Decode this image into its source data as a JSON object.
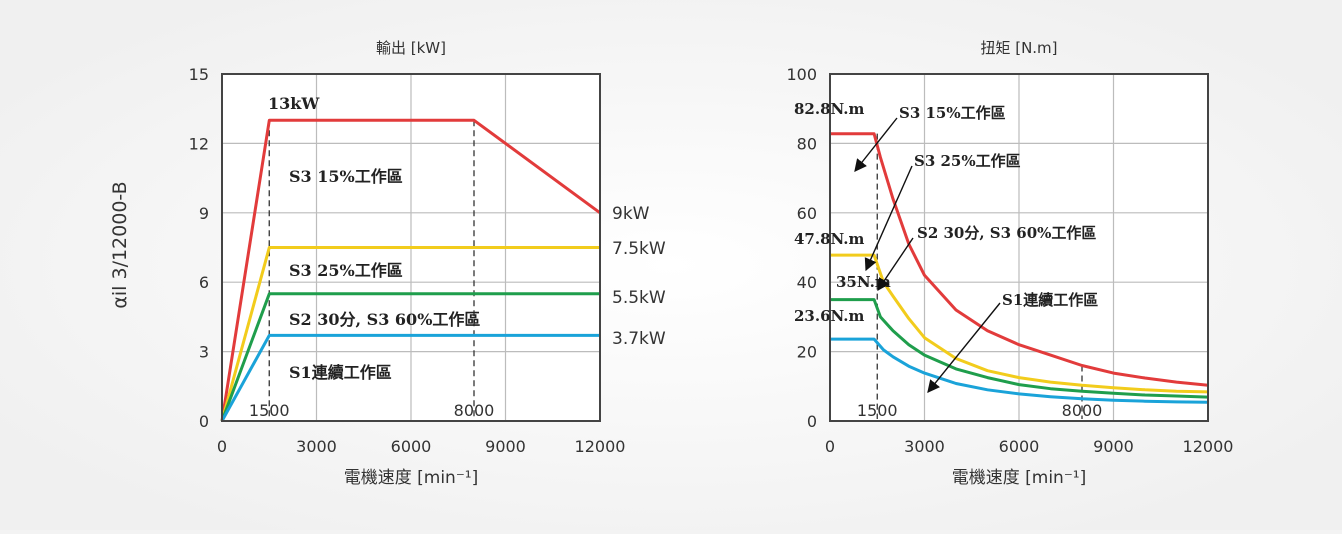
{
  "page": {
    "vertical_label": "αil 3/12000-B"
  },
  "chart_data": [
    {
      "id": "power",
      "type": "line",
      "title": "輸出 [kW]",
      "xlabel": "電機速度 [min⁻¹]",
      "ylabel": "",
      "xlim": [
        0,
        12000
      ],
      "ylim": [
        0,
        15
      ],
      "xticks": [
        0,
        3000,
        6000,
        9000,
        12000
      ],
      "yticks": [
        0,
        3,
        6,
        9,
        12,
        15
      ],
      "grid": true,
      "markers": [
        {
          "x": 1500,
          "label": "1500"
        },
        {
          "x": 8000,
          "label": "8000"
        }
      ],
      "series": [
        {
          "name": "S3 15%工作區",
          "color": "#e23b3b",
          "points": [
            [
              0,
              0
            ],
            [
              1500,
              13
            ],
            [
              8000,
              13
            ],
            [
              12000,
              9
            ]
          ]
        },
        {
          "name": "S3 25%工作區",
          "color": "#f2cc1c",
          "points": [
            [
              0,
              0
            ],
            [
              1500,
              7.5
            ],
            [
              12000,
              7.5
            ]
          ]
        },
        {
          "name": "S2 30分, S3 60%工作區",
          "color": "#1f9e4c",
          "points": [
            [
              0,
              0
            ],
            [
              1500,
              5.5
            ],
            [
              12000,
              5.5
            ]
          ]
        },
        {
          "name": "S1連續工作區",
          "color": "#1aa3d9",
          "points": [
            [
              0,
              0
            ],
            [
              1500,
              3.7
            ],
            [
              12000,
              3.7
            ]
          ]
        }
      ],
      "value_labels": [
        "9kW",
        "7.5kW",
        "5.5kW",
        "3.7kW"
      ],
      "annotations": [
        "13kW",
        "S3 15%工作區",
        "S3 25%工作區",
        "S2 30分, S3 60%工作區",
        "S1連續工作區"
      ]
    },
    {
      "id": "torque",
      "type": "line",
      "title": "扭矩 [N.m]",
      "xlabel": "電機速度 [min⁻¹]",
      "ylabel": "",
      "xlim": [
        0,
        12000
      ],
      "ylim": [
        0,
        100
      ],
      "xticks": [
        0,
        3000,
        6000,
        9000,
        12000
      ],
      "yticks": [
        0,
        20,
        40,
        60,
        80,
        100
      ],
      "grid": true,
      "markers": [
        {
          "x": 1500,
          "label": "1500"
        },
        {
          "x": 8000,
          "label": "8000"
        }
      ],
      "series": [
        {
          "name": "S3 15%工作區",
          "color": "#e23b3b",
          "points": [
            [
              0,
              82.8
            ],
            [
              1400,
              82.8
            ],
            [
              1600,
              76
            ],
            [
              2000,
              64
            ],
            [
              2500,
              51
            ],
            [
              3000,
              42
            ],
            [
              4000,
              32
            ],
            [
              5000,
              26
            ],
            [
              6000,
              22
            ],
            [
              7000,
              19
            ],
            [
              8000,
              16
            ],
            [
              9000,
              13.8
            ],
            [
              10000,
              12.4
            ],
            [
              11000,
              11.2
            ],
            [
              12000,
              10.3
            ]
          ]
        },
        {
          "name": "S3 25%工作區",
          "color": "#f2cc1c",
          "points": [
            [
              0,
              47.8
            ],
            [
              1400,
              47.8
            ],
            [
              1700,
              40
            ],
            [
              2000,
              36
            ],
            [
              2500,
              29.5
            ],
            [
              3000,
              24
            ],
            [
              4000,
              18
            ],
            [
              5000,
              14.5
            ],
            [
              6000,
              12.5
            ],
            [
              7000,
              11.2
            ],
            [
              8000,
              10.3
            ],
            [
              9000,
              9.6
            ],
            [
              10000,
              9
            ],
            [
              11000,
              8.6
            ],
            [
              12000,
              8.4
            ]
          ]
        },
        {
          "name": "S2 30分, S3 60%工作區",
          "color": "#1f9e4c",
          "points": [
            [
              0,
              35
            ],
            [
              1400,
              35
            ],
            [
              1600,
              30
            ],
            [
              2000,
              26
            ],
            [
              2500,
              22
            ],
            [
              3000,
              19
            ],
            [
              4000,
              15
            ],
            [
              5000,
              12.5
            ],
            [
              6000,
              10.5
            ],
            [
              7000,
              9.3
            ],
            [
              8000,
              8.6
            ],
            [
              9000,
              8
            ],
            [
              10000,
              7.5
            ],
            [
              11000,
              7.2
            ],
            [
              12000,
              6.9
            ]
          ]
        },
        {
          "name": "S1連續工作區",
          "color": "#1aa3d9",
          "points": [
            [
              0,
              23.6
            ],
            [
              1400,
              23.6
            ],
            [
              1700,
              20.5
            ],
            [
              2000,
              18.5
            ],
            [
              2500,
              15.8
            ],
            [
              3000,
              13.8
            ],
            [
              4000,
              10.8
            ],
            [
              5000,
              9
            ],
            [
              6000,
              7.8
            ],
            [
              7000,
              7
            ],
            [
              8000,
              6.4
            ],
            [
              9000,
              6
            ],
            [
              10000,
              5.7
            ],
            [
              11000,
              5.5
            ],
            [
              12000,
              5.4
            ]
          ]
        }
      ],
      "value_labels": [
        "82.8N.m",
        "47.8N.m",
        "35N.m",
        "23.6N.m"
      ],
      "annotations": [
        "S3 15%工作區",
        "S3 25%工作區",
        "S2 30分, S3 60%工作區",
        "S1連續工作區"
      ]
    }
  ]
}
